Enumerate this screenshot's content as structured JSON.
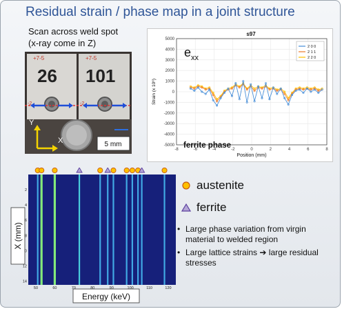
{
  "slide": {
    "title": "Residual strain / phase map in a joint structure",
    "photo_caption_line1": "Scan across weld spot",
    "photo_caption_line2": "(x-ray come in Z)"
  },
  "photo": {
    "sample_left_label": "26",
    "sample_right_label": "101",
    "axis_y_label": "Y",
    "axis_x_label": "X",
    "scale_label": "5 mm"
  },
  "strain_plot": {
    "symbol_label": "e",
    "symbol_subscript": "xx",
    "phase_label": "ferrite phase"
  },
  "heatmap": {
    "y_axis_label": "X (mm)",
    "x_axis_label": "Energy (keV)",
    "y_ticks": [
      "2",
      "4",
      "6",
      "8",
      "10",
      "12",
      "14"
    ],
    "x_ticks": [
      "50",
      "60",
      "70",
      "80",
      "90",
      "100",
      "110",
      "120"
    ],
    "austenite_peaks_kev": [
      51,
      53,
      60,
      84,
      91,
      98,
      101,
      104,
      118
    ],
    "ferrite_peaks_kev": [
      73,
      88,
      106
    ],
    "lines_kev": [
      51,
      53,
      60,
      73,
      84,
      88,
      91,
      98,
      101,
      104,
      106,
      118
    ]
  },
  "legend": {
    "austenite_label": "austenite",
    "ferrite_label": "ferrite",
    "austenite_color": "#ffc000",
    "ferrite_color": "#b4a7d6"
  },
  "bullets": [
    "Large phase variation from virgin material to welded region",
    "Large lattice strains ➔ large residual stresses"
  ],
  "chart_data": {
    "type": "line",
    "title": "s97",
    "xlabel": "Position (mm)",
    "ylabel": "Strain (x 10⁶)",
    "xlim": [
      -8,
      8
    ],
    "ylim": [
      -5000,
      5000
    ],
    "x_ticks": [
      -8,
      -6,
      -4,
      -2,
      0,
      2,
      4,
      6,
      8
    ],
    "y_ticks": [
      -5000,
      -4000,
      -3000,
      -2000,
      -1000,
      0,
      1000,
      2000,
      3000,
      4000,
      5000
    ],
    "grid": true,
    "legend_position": "top-right",
    "x": [
      -6.5,
      -6.1,
      -5.7,
      -5.3,
      -4.9,
      -4.5,
      -4.1,
      -3.7,
      -3.3,
      -2.9,
      -2.5,
      -2.1,
      -1.7,
      -1.3,
      -0.9,
      -0.5,
      -0.1,
      0.3,
      0.7,
      1.1,
      1.5,
      1.9,
      2.3,
      2.7,
      3.1,
      3.5,
      3.9,
      4.3,
      4.7,
      5.1,
      5.5,
      5.9,
      6.3,
      6.7,
      7.1,
      7.5
    ],
    "series": [
      {
        "name": "2 0 0",
        "color": "#4a90d9",
        "values": [
          300,
          100,
          400,
          0,
          -200,
          200,
          -800,
          -1300,
          -600,
          -100,
          300,
          -400,
          800,
          -700,
          1000,
          -1000,
          700,
          -900,
          500,
          -600,
          800,
          -700,
          400,
          -200,
          300,
          -600,
          -1200,
          -300,
          100,
          200,
          -100,
          300,
          0,
          200,
          -100,
          200
        ]
      },
      {
        "name": "2 1 1",
        "color": "#ed7d31",
        "values": [
          400,
          300,
          500,
          400,
          200,
          300,
          -300,
          -900,
          -500,
          0,
          200,
          300,
          600,
          400,
          700,
          200,
          500,
          100,
          400,
          300,
          500,
          200,
          300,
          100,
          200,
          -200,
          -800,
          -200,
          200,
          300,
          200,
          300,
          200,
          300,
          100,
          200
        ]
      },
      {
        "name": "2 2 0",
        "color": "#ffc000",
        "values": [
          500,
          400,
          600,
          500,
          300,
          400,
          -100,
          -700,
          -400,
          100,
          300,
          400,
          700,
          500,
          800,
          300,
          600,
          300,
          500,
          400,
          600,
          300,
          400,
          200,
          300,
          0,
          -600,
          -100,
          300,
          400,
          300,
          400,
          300,
          400,
          200,
          300
        ]
      }
    ]
  }
}
